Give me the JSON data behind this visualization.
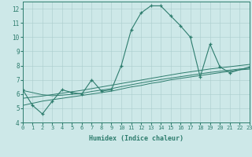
{
  "xlabel": "Humidex (Indice chaleur)",
  "x_values": [
    0,
    1,
    2,
    3,
    4,
    5,
    6,
    7,
    8,
    9,
    10,
    11,
    12,
    13,
    14,
    15,
    16,
    17,
    18,
    19,
    20,
    21,
    22,
    23
  ],
  "main_line": [
    6.3,
    5.2,
    4.6,
    5.5,
    6.3,
    6.1,
    6.0,
    7.0,
    6.2,
    6.3,
    8.0,
    10.5,
    11.7,
    12.2,
    12.2,
    11.5,
    10.8,
    10.0,
    7.2,
    9.5,
    7.9,
    7.5,
    null,
    7.9
  ],
  "regression1": [
    5.2,
    5.35,
    5.5,
    5.6,
    5.7,
    5.8,
    5.9,
    6.0,
    6.1,
    6.2,
    6.35,
    6.5,
    6.6,
    6.75,
    6.85,
    7.0,
    7.1,
    7.2,
    7.3,
    7.4,
    7.5,
    7.6,
    7.7,
    7.75
  ],
  "regression2": [
    5.7,
    5.78,
    5.86,
    5.96,
    6.06,
    6.16,
    6.26,
    6.38,
    6.5,
    6.62,
    6.74,
    6.86,
    6.98,
    7.1,
    7.22,
    7.34,
    7.46,
    7.56,
    7.66,
    7.76,
    7.84,
    7.92,
    8.0,
    8.08
  ],
  "regression3": [
    6.25,
    6.1,
    5.95,
    5.88,
    5.92,
    5.98,
    6.05,
    6.18,
    6.28,
    6.38,
    6.52,
    6.65,
    6.78,
    6.9,
    7.02,
    7.12,
    7.22,
    7.32,
    7.42,
    7.52,
    7.6,
    7.68,
    7.76,
    7.82
  ],
  "line_color": "#2e7d6e",
  "bg_color": "#cde8e8",
  "grid_color": "#aacccc",
  "xlim": [
    0,
    23
  ],
  "ylim": [
    4,
    12.5
  ],
  "yticks": [
    4,
    5,
    6,
    7,
    8,
    9,
    10,
    11,
    12
  ],
  "xticks": [
    0,
    1,
    2,
    3,
    4,
    5,
    6,
    7,
    8,
    9,
    10,
    11,
    12,
    13,
    14,
    15,
    16,
    17,
    18,
    19,
    20,
    21,
    22,
    23
  ]
}
